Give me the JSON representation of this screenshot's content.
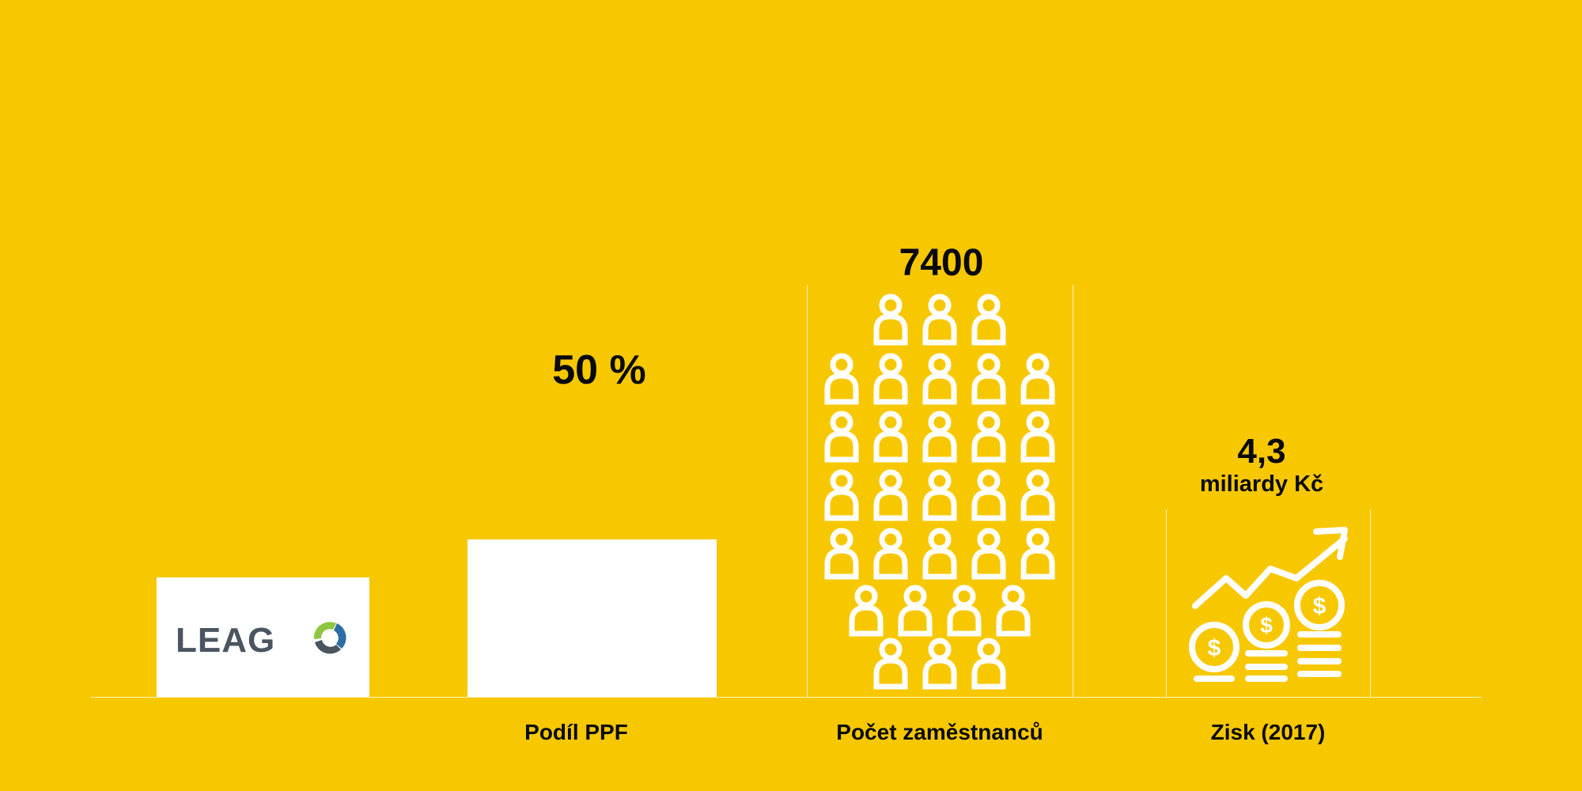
{
  "colors": {
    "background": "#F7C800",
    "bar": "#FFFFFF",
    "text": "#0A0A0A",
    "logo_text": "#4A5560",
    "logo_green": "#8DC63F",
    "logo_blue": "#2E6DA4"
  },
  "logo": {
    "text": "LEAG",
    "icon": "leag-swirl-icon"
  },
  "chart_data": {
    "type": "bar",
    "categories": [
      "Podíl PPF",
      "Počet zaměstnanců",
      "Zisk (2017)"
    ],
    "items": [
      {
        "category": "Podíl PPF",
        "value_label": "50 %",
        "value": 50,
        "unit": "%",
        "visual": "white-bar"
      },
      {
        "category": "Počet zaměstnanců",
        "value_label": "7400",
        "value": 7400,
        "unit": "",
        "visual": "person-icons",
        "icon_name": "person-icon"
      },
      {
        "category": "Zisk (2017)",
        "value_label": "4,3",
        "unit_label": "miliardy Kč",
        "value": 4.3,
        "visual": "profit-icon",
        "icon_name": "growth-coins-icon"
      }
    ],
    "ylim": [
      0,
      100
    ],
    "grid": false,
    "legend": "none"
  }
}
